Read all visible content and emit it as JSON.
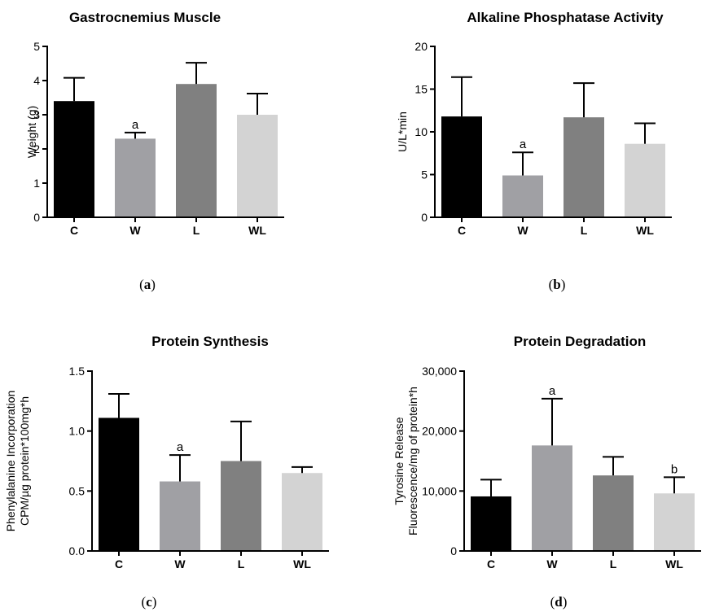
{
  "chart_data": [
    {
      "panel_label": "a",
      "type": "bar",
      "title": "Gastrocnemius Muscle",
      "ylabel": [
        "Weight (g)"
      ],
      "categories": [
        "C",
        "W",
        "L",
        "WL"
      ],
      "values": [
        3.4,
        2.3,
        3.9,
        3.0
      ],
      "errors": [
        0.68,
        0.18,
        0.62,
        0.62
      ],
      "significance": [
        "",
        "a",
        "",
        ""
      ],
      "ylim": [
        0,
        5
      ],
      "yticks": [
        0,
        1,
        2,
        3,
        4,
        5
      ],
      "ytick_labels": [
        "0",
        "1",
        "2",
        "3",
        "4",
        "5"
      ],
      "colors": [
        "#000000",
        "#a0a0a4",
        "#808080",
        "#d3d3d3"
      ],
      "grid": false
    },
    {
      "panel_label": "b",
      "type": "bar",
      "title": "Alkaline Phosphatase Activity",
      "ylabel": [
        "U/L*min"
      ],
      "categories": [
        "C",
        "W",
        "L",
        "WL"
      ],
      "values": [
        11.8,
        4.9,
        11.7,
        8.6
      ],
      "errors": [
        4.6,
        2.7,
        4.0,
        2.4
      ],
      "significance": [
        "",
        "a",
        "",
        ""
      ],
      "ylim": [
        0,
        20
      ],
      "yticks": [
        0,
        5,
        10,
        15,
        20
      ],
      "ytick_labels": [
        "0",
        "5",
        "10",
        "15",
        "20"
      ],
      "colors": [
        "#000000",
        "#a0a0a4",
        "#808080",
        "#d3d3d3"
      ],
      "grid": false
    },
    {
      "panel_label": "c",
      "type": "bar",
      "title": "Protein Synthesis",
      "ylabel": [
        "Phenylalanine Incorporation",
        "CPM/µg protein*100mg*h"
      ],
      "categories": [
        "C",
        "W",
        "L",
        "WL"
      ],
      "values": [
        1.11,
        0.58,
        0.75,
        0.65
      ],
      "errors": [
        0.2,
        0.22,
        0.33,
        0.05
      ],
      "significance": [
        "",
        "a",
        "",
        ""
      ],
      "ylim": [
        0,
        1.5
      ],
      "yticks": [
        0,
        0.5,
        1.0,
        1.5
      ],
      "ytick_labels": [
        "0.0",
        "0.5",
        "1.0",
        "1.5"
      ],
      "colors": [
        "#000000",
        "#a0a0a4",
        "#808080",
        "#d3d3d3"
      ],
      "grid": false
    },
    {
      "panel_label": "d",
      "type": "bar",
      "title": "Protein Degradation",
      "ylabel": [
        "Tyrosine Release",
        "Fluorescence/mg of protein*h"
      ],
      "categories": [
        "C",
        "W",
        "L",
        "WL"
      ],
      "values": [
        9100,
        17600,
        12600,
        9600
      ],
      "errors": [
        2800,
        7800,
        3100,
        2700
      ],
      "significance": [
        "",
        "a",
        "",
        "b"
      ],
      "ylim": [
        0,
        30000
      ],
      "yticks": [
        0,
        10000,
        20000,
        30000
      ],
      "ytick_labels": [
        "0",
        "10,000",
        "20,000",
        "30,000"
      ],
      "colors": [
        "#000000",
        "#a0a0a4",
        "#808080",
        "#d3d3d3"
      ],
      "grid": false
    }
  ]
}
